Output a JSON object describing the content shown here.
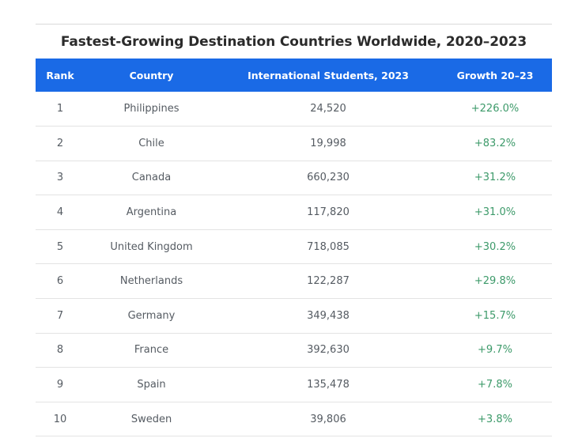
{
  "title": "Fastest-Growing Destination Countries Worldwide, 2020–2023",
  "columns": {
    "rank": "Rank",
    "country": "Country",
    "students": "International Students, 2023",
    "growth": "Growth 20–23"
  },
  "rows": [
    {
      "rank": "1",
      "country": "Philippines",
      "students": "24,520",
      "growth": "+226.0%"
    },
    {
      "rank": "2",
      "country": "Chile",
      "students": "19,998",
      "growth": "+83.2%"
    },
    {
      "rank": "3",
      "country": "Canada",
      "students": "660,230",
      "growth": "+31.2%"
    },
    {
      "rank": "4",
      "country": "Argentina",
      "students": "117,820",
      "growth": "+31.0%"
    },
    {
      "rank": "5",
      "country": "United Kingdom",
      "students": "718,085",
      "growth": "+30.2%"
    },
    {
      "rank": "6",
      "country": "Netherlands",
      "students": "122,287",
      "growth": "+29.8%"
    },
    {
      "rank": "7",
      "country": "Germany",
      "students": "349,438",
      "growth": "+15.7%"
    },
    {
      "rank": "8",
      "country": "France",
      "students": "392,630",
      "growth": "+9.7%"
    },
    {
      "rank": "9",
      "country": "Spain",
      "students": "135,478",
      "growth": "+7.8%"
    },
    {
      "rank": "10",
      "country": "Sweden",
      "students": "39,806",
      "growth": "+3.8%"
    }
  ],
  "colors": {
    "header_bg": "#1a6ae6",
    "growth_text": "#3d9a6a"
  }
}
